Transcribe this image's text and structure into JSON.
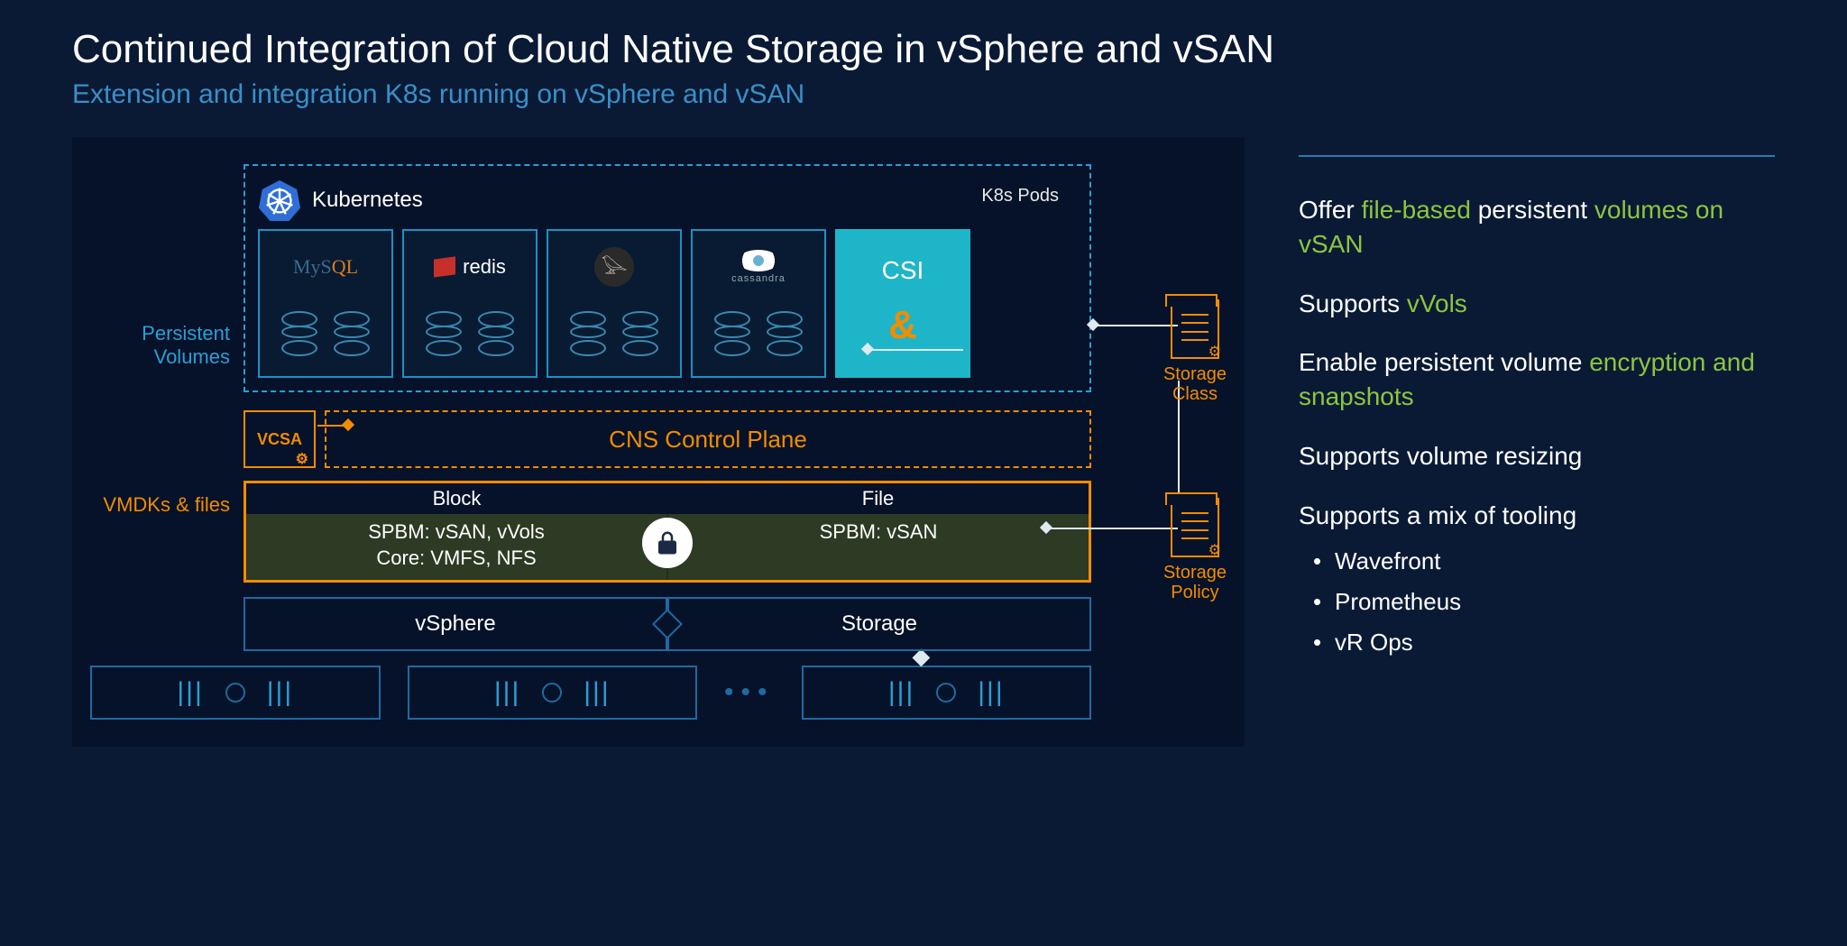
{
  "colors": {
    "background": "#0a1a35",
    "diagram_bg": "#061229",
    "accent_blue": "#2a9fd6",
    "accent_blue_dark": "#1f6aa0",
    "accent_orange": "#f28c00",
    "accent_green": "#8cc63f",
    "subtitle_blue": "#3a8fc8",
    "csi_bg": "#1fb5c9",
    "olive_row": "#2d3a24",
    "text": "#ffffff"
  },
  "typography": {
    "title_size": 44,
    "subtitle_size": 30,
    "body_size": 28
  },
  "header": {
    "title": "Continued Integration of Cloud Native Storage in vSphere and vSAN",
    "subtitle": "Extension and integration K8s running on vSphere and vSAN"
  },
  "diagram": {
    "side_labels": {
      "persistent_volumes": "Persistent\nVolumes",
      "vmdks_files": "VMDKs & files"
    },
    "kubernetes": {
      "label": "Kubernetes",
      "pods_label": "K8s Pods",
      "pods": [
        {
          "name": "mysql",
          "logo_text": "MySQL"
        },
        {
          "name": "redis",
          "logo_text": "redis"
        },
        {
          "name": "cassandra-bird",
          "logo_text": "𓅪"
        },
        {
          "name": "cassandra",
          "logo_text": "cassandra"
        }
      ],
      "csi_label": "CSI"
    },
    "cns": {
      "vcsa": "VCSA",
      "control_plane": "CNS Control Plane"
    },
    "block_file": {
      "headers": {
        "block": "Block",
        "file": "File"
      },
      "block_lines": [
        "SPBM: vSAN, vVols",
        "Core: VMFS, NFS"
      ],
      "file_lines": [
        "SPBM: vSAN"
      ]
    },
    "infra": {
      "vsphere": "vSphere",
      "storage": "Storage"
    },
    "annotations": {
      "storage_class": "Storage\nClass",
      "storage_policy": "Storage\nPolicy"
    },
    "hardware_nodes": 4
  },
  "bullets": [
    {
      "segments": [
        {
          "t": "Offer "
        },
        {
          "t": "file-based",
          "c": "hl-green"
        },
        {
          "t": " persistent "
        },
        {
          "t": "volumes on vSAN",
          "c": "hl-green"
        }
      ]
    },
    {
      "segments": [
        {
          "t": "Supports "
        },
        {
          "t": "vVols",
          "c": "hl-green"
        }
      ]
    },
    {
      "segments": [
        {
          "t": "Enable persistent volume "
        },
        {
          "t": "encryption and snapshots",
          "c": "hl-green"
        }
      ]
    },
    {
      "segments": [
        {
          "t": "Supports volume resizing"
        }
      ]
    },
    {
      "segments": [
        {
          "t": "Supports a mix of tooling"
        }
      ],
      "sub": [
        "Wavefront",
        "Prometheus",
        "vR Ops"
      ]
    }
  ]
}
